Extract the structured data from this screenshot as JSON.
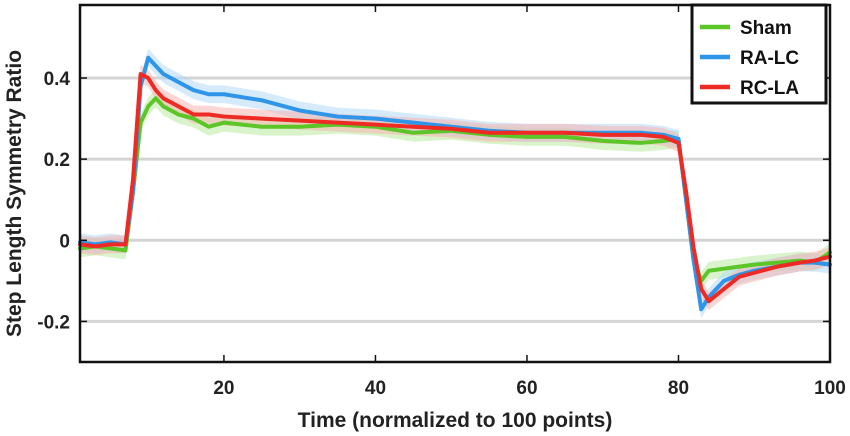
{
  "chart_data": {
    "type": "line",
    "title": "",
    "xlabel": "Time (normalized to 100 points)",
    "ylabel": "Step Length Symmetry Ratio",
    "xlim": [
      1,
      100
    ],
    "ylim": [
      -0.3,
      0.58
    ],
    "xticks": [
      20,
      40,
      60,
      80,
      100
    ],
    "xtick_labels": [
      "20",
      "40",
      "60",
      "80",
      "100"
    ],
    "yticks": [
      -0.2,
      0,
      0.2,
      0.4
    ],
    "ytick_labels": [
      "-0.2",
      "0",
      "0.2",
      "0.4"
    ],
    "grid": "horizontal",
    "legend_position": "top-right",
    "shaded_error_bands": true,
    "series": [
      {
        "name": "Sham",
        "color": "#5cc527",
        "band_color": "#b9eaa0",
        "x": [
          1,
          3,
          5,
          7,
          8,
          9,
          10,
          11,
          12,
          14,
          16,
          18,
          20,
          25,
          30,
          35,
          40,
          45,
          50,
          55,
          60,
          65,
          70,
          75,
          78,
          80,
          81,
          82,
          83,
          84,
          86,
          88,
          90,
          93,
          96,
          98,
          100
        ],
        "y": [
          -0.02,
          -0.015,
          -0.02,
          -0.025,
          0.12,
          0.29,
          0.33,
          0.35,
          0.33,
          0.31,
          0.3,
          0.28,
          0.29,
          0.28,
          0.28,
          0.285,
          0.28,
          0.265,
          0.27,
          0.26,
          0.255,
          0.255,
          0.245,
          0.24,
          0.245,
          0.25,
          0.1,
          -0.05,
          -0.1,
          -0.075,
          -0.07,
          -0.065,
          -0.06,
          -0.055,
          -0.05,
          -0.055,
          -0.03
        ]
      },
      {
        "name": "RA-LC",
        "color": "#2e95e8",
        "band_color": "#b3dbf7",
        "x": [
          1,
          3,
          5,
          7,
          8,
          9,
          10,
          11,
          12,
          14,
          16,
          18,
          20,
          25,
          30,
          35,
          40,
          45,
          50,
          55,
          60,
          65,
          70,
          75,
          78,
          80,
          81,
          82,
          83,
          84,
          86,
          88,
          90,
          93,
          96,
          98,
          100
        ],
        "y": [
          -0.005,
          -0.01,
          -0.005,
          -0.01,
          0.12,
          0.38,
          0.45,
          0.43,
          0.41,
          0.39,
          0.37,
          0.36,
          0.36,
          0.345,
          0.32,
          0.305,
          0.3,
          0.29,
          0.28,
          0.27,
          0.265,
          0.265,
          0.265,
          0.265,
          0.26,
          0.25,
          0.1,
          -0.05,
          -0.17,
          -0.14,
          -0.1,
          -0.085,
          -0.075,
          -0.065,
          -0.055,
          -0.055,
          -0.06
        ]
      },
      {
        "name": "RC-LA",
        "color": "#ee2a24",
        "band_color": "#f6b4b0",
        "x": [
          1,
          3,
          5,
          7,
          8,
          9,
          10,
          11,
          12,
          14,
          16,
          18,
          20,
          25,
          30,
          35,
          40,
          45,
          50,
          55,
          60,
          65,
          70,
          75,
          78,
          80,
          81,
          82,
          83,
          84,
          86,
          88,
          90,
          93,
          96,
          98,
          100
        ],
        "y": [
          -0.01,
          -0.015,
          -0.01,
          -0.01,
          0.15,
          0.41,
          0.4,
          0.37,
          0.35,
          0.33,
          0.31,
          0.31,
          0.305,
          0.3,
          0.295,
          0.29,
          0.285,
          0.28,
          0.275,
          0.265,
          0.265,
          0.265,
          0.26,
          0.26,
          0.255,
          0.24,
          0.12,
          -0.02,
          -0.12,
          -0.15,
          -0.12,
          -0.09,
          -0.08,
          -0.065,
          -0.055,
          -0.05,
          -0.04
        ]
      }
    ]
  }
}
